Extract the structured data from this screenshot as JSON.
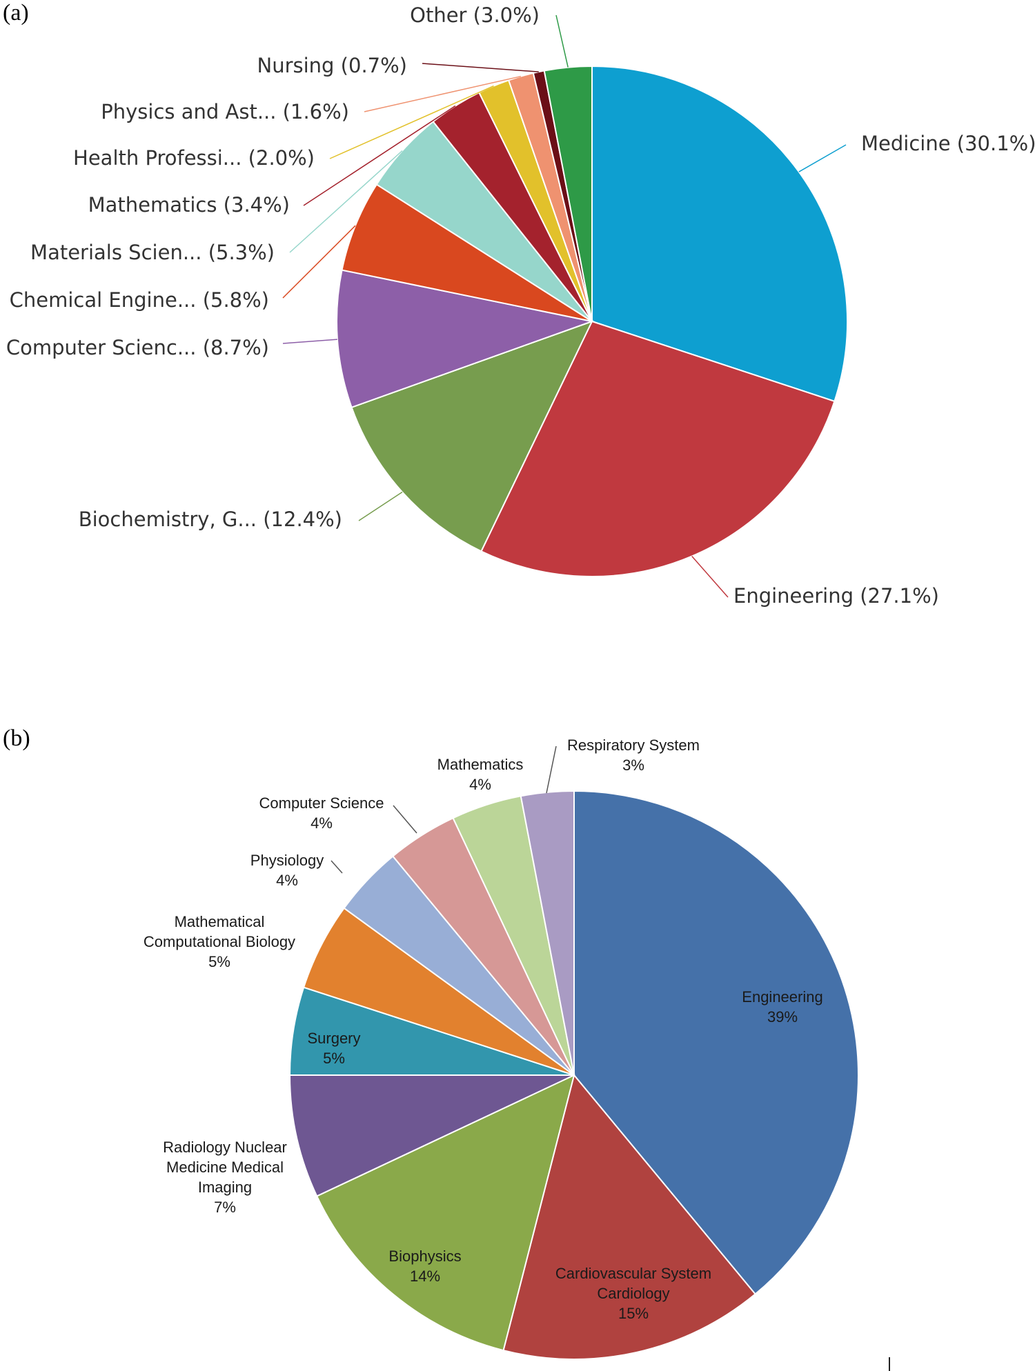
{
  "panels": [
    {
      "label": "(a)"
    },
    {
      "label": "(b)"
    }
  ],
  "chart_data": [
    {
      "type": "pie",
      "title": "",
      "start_angle": 0,
      "direction": "clockwise",
      "slices": [
        {
          "name": "Medicine",
          "label": "Medicine (30.1%)",
          "value": 30.1,
          "color": "#0e9fd0"
        },
        {
          "name": "Engineering",
          "label": "Engineering (27.1%)",
          "value": 27.1,
          "color": "#c0393f"
        },
        {
          "name": "Biochemistry, G...",
          "label": "Biochemistry, G... (12.4%)",
          "value": 12.4,
          "color": "#779d4e"
        },
        {
          "name": "Computer Scienc...",
          "label": "Computer Scienc... (8.7%)",
          "value": 8.7,
          "color": "#8d5fa8"
        },
        {
          "name": "Chemical Engine...",
          "label": "Chemical Engine... (5.8%)",
          "value": 5.8,
          "color": "#d9481f"
        },
        {
          "name": "Materials Scien...",
          "label": "Materials Scien... (5.3%)",
          "value": 5.3,
          "color": "#96d6cb"
        },
        {
          "name": "Mathematics",
          "label": "Mathematics (3.4%)",
          "value": 3.4,
          "color": "#a4222d"
        },
        {
          "name": "Health Professi...",
          "label": "Health Professi... (2.0%)",
          "value": 2.0,
          "color": "#e2c12b"
        },
        {
          "name": "Physics and Ast...",
          "label": "Physics and Ast... (1.6%)",
          "value": 1.6,
          "color": "#ef9270"
        },
        {
          "name": "Nursing",
          "label": "Nursing (0.7%)",
          "value": 0.7,
          "color": "#6b0f17"
        },
        {
          "name": "Other",
          "label": "Other (3.0%)",
          "value": 3.0,
          "color": "#2e9a47"
        }
      ]
    },
    {
      "type": "pie",
      "title": "",
      "start_angle": 0,
      "direction": "clockwise",
      "slices": [
        {
          "name": "Engineering",
          "lines": [
            "Engineering",
            "39%"
          ],
          "value": 39,
          "color": "#4571a9"
        },
        {
          "name": "Cardiovascular System Cardiology",
          "lines": [
            "Cardiovascular System",
            "Cardiology",
            "15%"
          ],
          "value": 15,
          "color": "#b0423f"
        },
        {
          "name": "Biophysics",
          "lines": [
            "Biophysics",
            "14%"
          ],
          "value": 14,
          "color": "#8aa94a"
        },
        {
          "name": "Radiology Nuclear Medicine Medical Imaging",
          "lines": [
            "Radiology Nuclear",
            "Medicine Medical",
            "Imaging",
            "7%"
          ],
          "value": 7,
          "color": "#6e5792"
        },
        {
          "name": "Surgery",
          "lines": [
            "Surgery",
            "5%"
          ],
          "value": 5,
          "color": "#3296ad"
        },
        {
          "name": "Mathematical Computational Biology",
          "lines": [
            "Mathematical",
            "Computational Biology",
            "5%"
          ],
          "value": 5,
          "color": "#e2812e"
        },
        {
          "name": "Physiology",
          "lines": [
            "Physiology",
            "4%"
          ],
          "value": 4,
          "color": "#98aed6"
        },
        {
          "name": "Computer Science",
          "lines": [
            "Computer Science",
            "4%"
          ],
          "value": 4,
          "color": "#d69896"
        },
        {
          "name": "Mathematics",
          "lines": [
            "Mathematics",
            "4%"
          ],
          "value": 4,
          "color": "#bbd598"
        },
        {
          "name": "Respiratory System",
          "lines": [
            "Respiratory System",
            "3%"
          ],
          "value": 3,
          "color": "#a99bc3"
        }
      ]
    }
  ]
}
